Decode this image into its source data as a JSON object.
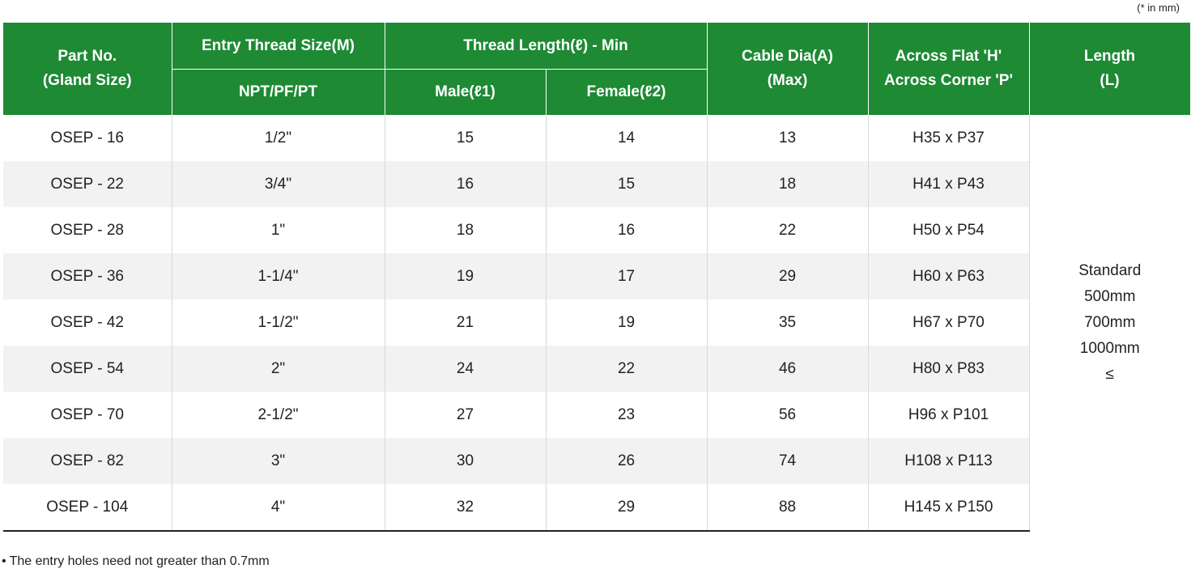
{
  "unit_note": "(* in mm)",
  "headers": {
    "part_no": [
      "Part No.",
      "(Gland Size)"
    ],
    "entry_thread": "Entry Thread Size(M)",
    "entry_thread_sub": "NPT/PF/PT",
    "thread_length": "Thread Length(ℓ) - Min",
    "male": "Male(ℓ1)",
    "female": "Female(ℓ2)",
    "cable_dia": [
      "Cable Dia(A)",
      "(Max)"
    ],
    "across": [
      "Across Flat 'H'",
      "Across Corner 'P'"
    ],
    "length": [
      "Length",
      "(L)"
    ]
  },
  "rows": [
    {
      "part": "OSEP - 16",
      "thread": "1/2\"",
      "male": "15",
      "female": "14",
      "cable": "13",
      "across": "H35 x P37"
    },
    {
      "part": "OSEP - 22",
      "thread": "3/4\"",
      "male": "16",
      "female": "15",
      "cable": "18",
      "across": "H41 x P43"
    },
    {
      "part": "OSEP - 28",
      "thread": "1\"",
      "male": "18",
      "female": "16",
      "cable": "22",
      "across": "H50 x P54"
    },
    {
      "part": "OSEP - 36",
      "thread": "1-1/4\"",
      "male": "19",
      "female": "17",
      "cable": "29",
      "across": "H60 x P63"
    },
    {
      "part": "OSEP - 42",
      "thread": "1-1/2\"",
      "male": "21",
      "female": "19",
      "cable": "35",
      "across": "H67 x P70"
    },
    {
      "part": "OSEP - 54",
      "thread": "2\"",
      "male": "24",
      "female": "22",
      "cable": "46",
      "across": "H80 x P83"
    },
    {
      "part": "OSEP - 70",
      "thread": "2-1/2\"",
      "male": "27",
      "female": "23",
      "cable": "56",
      "across": "H96 x P101"
    },
    {
      "part": "OSEP - 82",
      "thread": "3\"",
      "male": "30",
      "female": "26",
      "cable": "74",
      "across": "H108 x P113"
    },
    {
      "part": "OSEP - 104",
      "thread": "4\"",
      "male": "32",
      "female": "29",
      "cable": "88",
      "across": "H145 x P150"
    }
  ],
  "length_values": [
    "Standard",
    "500mm",
    "700mm",
    "1000mm",
    "≤"
  ],
  "footnote": "The entry holes need not greater than 0.7mm",
  "colors": {
    "header_bg": "#1e8a34",
    "alt_row_bg": "#f2f2f2"
  }
}
